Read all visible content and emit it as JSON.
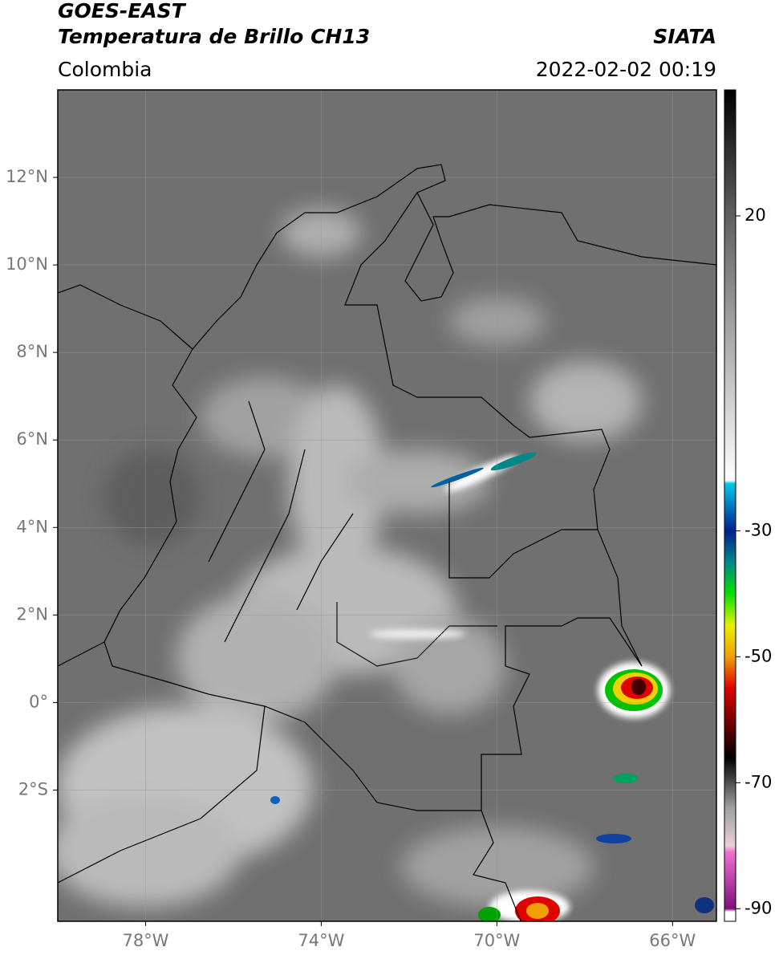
{
  "header": {
    "satellite": "GOES-EAST",
    "product": "Temperatura de Brillo CH13",
    "source": "SIATA",
    "region": "Colombia",
    "datetime": "2022-02-02 00:19"
  },
  "map": {
    "xlim": [
      -80,
      -65
    ],
    "ylim": [
      -5,
      14
    ],
    "xticks": [
      {
        "value": -78,
        "label": "78°W"
      },
      {
        "value": -74,
        "label": "74°W"
      },
      {
        "value": -70,
        "label": "70°W"
      },
      {
        "value": -66,
        "label": "66°W"
      }
    ],
    "yticks": [
      {
        "value": 12,
        "label": "12°N"
      },
      {
        "value": 10,
        "label": "10°N"
      },
      {
        "value": 8,
        "label": "8°N"
      },
      {
        "value": 6,
        "label": "6°N"
      },
      {
        "value": 4,
        "label": "4°N"
      },
      {
        "value": 2,
        "label": "2°N"
      },
      {
        "value": 0,
        "label": "0°"
      },
      {
        "value": -2,
        "label": "2°S"
      }
    ],
    "grid": true
  },
  "colorbar": {
    "lim": [
      -92,
      40
    ],
    "ticks": [
      20,
      -30,
      -50,
      -70,
      -90
    ],
    "colormap": [
      [
        40,
        "#000000"
      ],
      [
        20,
        "#606060"
      ],
      [
        -22,
        "#ffffff"
      ],
      [
        -22.5,
        "#00c8e8"
      ],
      [
        -30,
        "#002090"
      ],
      [
        -35,
        "#008888"
      ],
      [
        -40,
        "#00e000"
      ],
      [
        -45,
        "#e8f000"
      ],
      [
        -50,
        "#f0a000"
      ],
      [
        -55,
        "#e00000"
      ],
      [
        -62,
        "#500000"
      ],
      [
        -66,
        "#000000"
      ],
      [
        -74,
        "#a0a0a0"
      ],
      [
        -80,
        "#e8d0d8"
      ],
      [
        -81,
        "#f070d0"
      ],
      [
        -90,
        "#801080"
      ],
      [
        -90.5,
        "#ffffff"
      ],
      [
        -92,
        "#ffffff"
      ]
    ]
  }
}
